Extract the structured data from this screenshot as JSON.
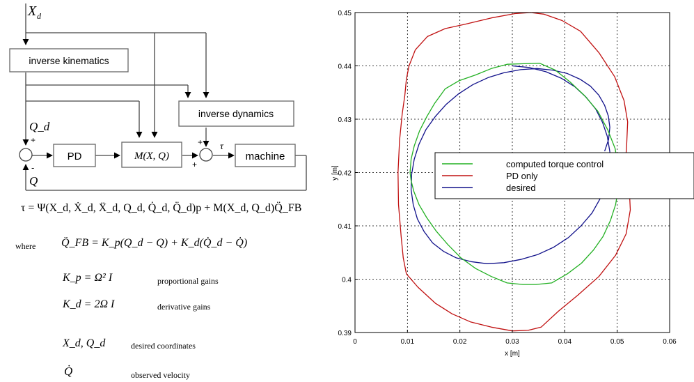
{
  "block_diagram": {
    "input_label": "X_d",
    "blocks": {
      "inverse_kinematics": "inverse kinematics",
      "inverse_dynamics": "inverse dynamics",
      "pd": "PD",
      "mass_matrix": "M(X, Q)",
      "machine": "machine"
    },
    "signals": {
      "q_desired": "Q_d",
      "q_feedback": "Q",
      "tau": "τ"
    },
    "sum_signs": {
      "sum1_top": "+",
      "sum1_bottom": "-",
      "sum2_top": "+",
      "sum2_left": "+"
    }
  },
  "equations": {
    "torque_law": "τ = Ψ(X_d, Ẋ_d, Ẍ_d, Q_d, Q̇_d, Q̈_d)p + M(X_d, Q_d)Q̈_FB",
    "where_label": "where",
    "feedback_law": "Q̈_FB = K_p(Q_d − Q) + K_d(Q̇_d − Q̇)",
    "kp_def": "K_p = Ω² I",
    "kp_desc": "proportional gains",
    "kd_def": "K_d = 2Ω I",
    "kd_desc": "derivative gains",
    "desired_sym": "X_d, Q_d",
    "desired_desc": "desired coordinates",
    "velocity_sym": "Q̇",
    "velocity_desc": "observed velocity"
  },
  "chart_data": {
    "type": "line",
    "xlabel": "x [m]",
    "ylabel": "y [m]",
    "xlim": [
      0,
      0.06
    ],
    "ylim": [
      0.39,
      0.45
    ],
    "xticks": [
      "0",
      "0.01",
      "0.02",
      "0.03",
      "0.04",
      "0.05",
      "0.06"
    ],
    "yticks": [
      "0.39",
      "0.4",
      "0.41",
      "0.42",
      "0.43",
      "0.44",
      "0.45"
    ],
    "grid": true,
    "legend_position": "center-right",
    "series": [
      {
        "name": "computed torque control",
        "color": "#22b022",
        "x": [
          0.0105,
          0.0107,
          0.0113,
          0.0123,
          0.0137,
          0.0152,
          0.0172,
          0.0198,
          0.023,
          0.026,
          0.029,
          0.0322,
          0.0352,
          0.0382,
          0.041,
          0.0437,
          0.0463,
          0.0482,
          0.0496,
          0.0502,
          0.0504,
          0.0502,
          0.0497,
          0.0487,
          0.0473,
          0.0455,
          0.0432,
          0.0405,
          0.0375,
          0.0345,
          0.032,
          0.029,
          0.026,
          0.023,
          0.0202,
          0.0177,
          0.0155,
          0.0137,
          0.0122,
          0.0112,
          0.0107,
          0.0105
        ],
        "y": [
          0.42,
          0.4225,
          0.425,
          0.4278,
          0.4305,
          0.433,
          0.4357,
          0.4372,
          0.4383,
          0.4395,
          0.4403,
          0.4404,
          0.4405,
          0.4392,
          0.437,
          0.4345,
          0.4315,
          0.428,
          0.4245,
          0.421,
          0.42,
          0.417,
          0.414,
          0.411,
          0.408,
          0.4055,
          0.403,
          0.401,
          0.3993,
          0.399,
          0.399,
          0.3993,
          0.4005,
          0.402,
          0.404,
          0.4065,
          0.409,
          0.4115,
          0.414,
          0.4165,
          0.4185,
          0.42
        ]
      },
      {
        "name": "PD only",
        "color": "#c01010",
        "x": [
          0.0082,
          0.0085,
          0.009,
          0.0095,
          0.0098,
          0.0103,
          0.0115,
          0.0138,
          0.0172,
          0.021,
          0.026,
          0.0305,
          0.0335,
          0.036,
          0.0395,
          0.043,
          0.0465,
          0.0495,
          0.0513,
          0.052,
          0.0518,
          0.0515,
          0.0523,
          0.0525,
          0.0517,
          0.0497,
          0.0465,
          0.0425,
          0.0388,
          0.0355,
          0.033,
          0.03,
          0.026,
          0.022,
          0.0185,
          0.0153,
          0.012,
          0.0098,
          0.0092,
          0.0088,
          0.0083,
          0.0082
        ],
        "y": [
          0.42,
          0.426,
          0.431,
          0.4345,
          0.4375,
          0.44,
          0.443,
          0.4455,
          0.447,
          0.4478,
          0.449,
          0.4498,
          0.45,
          0.4497,
          0.4485,
          0.4465,
          0.4425,
          0.438,
          0.4335,
          0.4295,
          0.425,
          0.421,
          0.417,
          0.413,
          0.4085,
          0.4045,
          0.4005,
          0.397,
          0.394,
          0.391,
          0.3904,
          0.3903,
          0.391,
          0.392,
          0.3935,
          0.3955,
          0.3985,
          0.401,
          0.404,
          0.408,
          0.414,
          0.42
        ]
      },
      {
        "name": "desired",
        "color": "#10108a",
        "x": [
          0.03,
          0.0332,
          0.0364,
          0.0393,
          0.0419,
          0.0441,
          0.0459,
          0.0472,
          0.0481,
          0.0486,
          0.0485,
          0.0479,
          0.0468,
          0.0452,
          0.0431,
          0.0407,
          0.0379,
          0.0348,
          0.0316,
          0.0284,
          0.0252,
          0.0221,
          0.0193,
          0.0169,
          0.0148,
          0.0132,
          0.0119,
          0.0111,
          0.0107,
          0.0108,
          0.0113,
          0.0122,
          0.0135,
          0.0153,
          0.0174,
          0.0198,
          0.0225,
          0.0254,
          0.0284,
          0.0316,
          0.0347,
          0.0377,
          0.0404,
          0.0429,
          0.0449,
          0.0465,
          0.0476,
          0.0483,
          0.0486,
          0.04836,
          0.0476
        ],
        "y": [
          0.44,
          0.4397,
          0.4389,
          0.4377,
          0.4361,
          0.4341,
          0.4319,
          0.4294,
          0.4268,
          0.4239,
          0.421,
          0.418,
          0.4152,
          0.4124,
          0.41,
          0.4078,
          0.406,
          0.4046,
          0.4037,
          0.4031,
          0.4029,
          0.4033,
          0.404,
          0.4052,
          0.4068,
          0.4089,
          0.4113,
          0.414,
          0.4168,
          0.4197,
          0.4225,
          0.4253,
          0.428,
          0.4305,
          0.4328,
          0.4348,
          0.4365,
          0.4378,
          0.4387,
          0.4393,
          0.4395,
          0.4392,
          0.4386,
          0.4375,
          0.4362,
          0.4345,
          0.4326,
          0.4306,
          0.4285,
          0.4262,
          0.424
        ]
      }
    ]
  }
}
